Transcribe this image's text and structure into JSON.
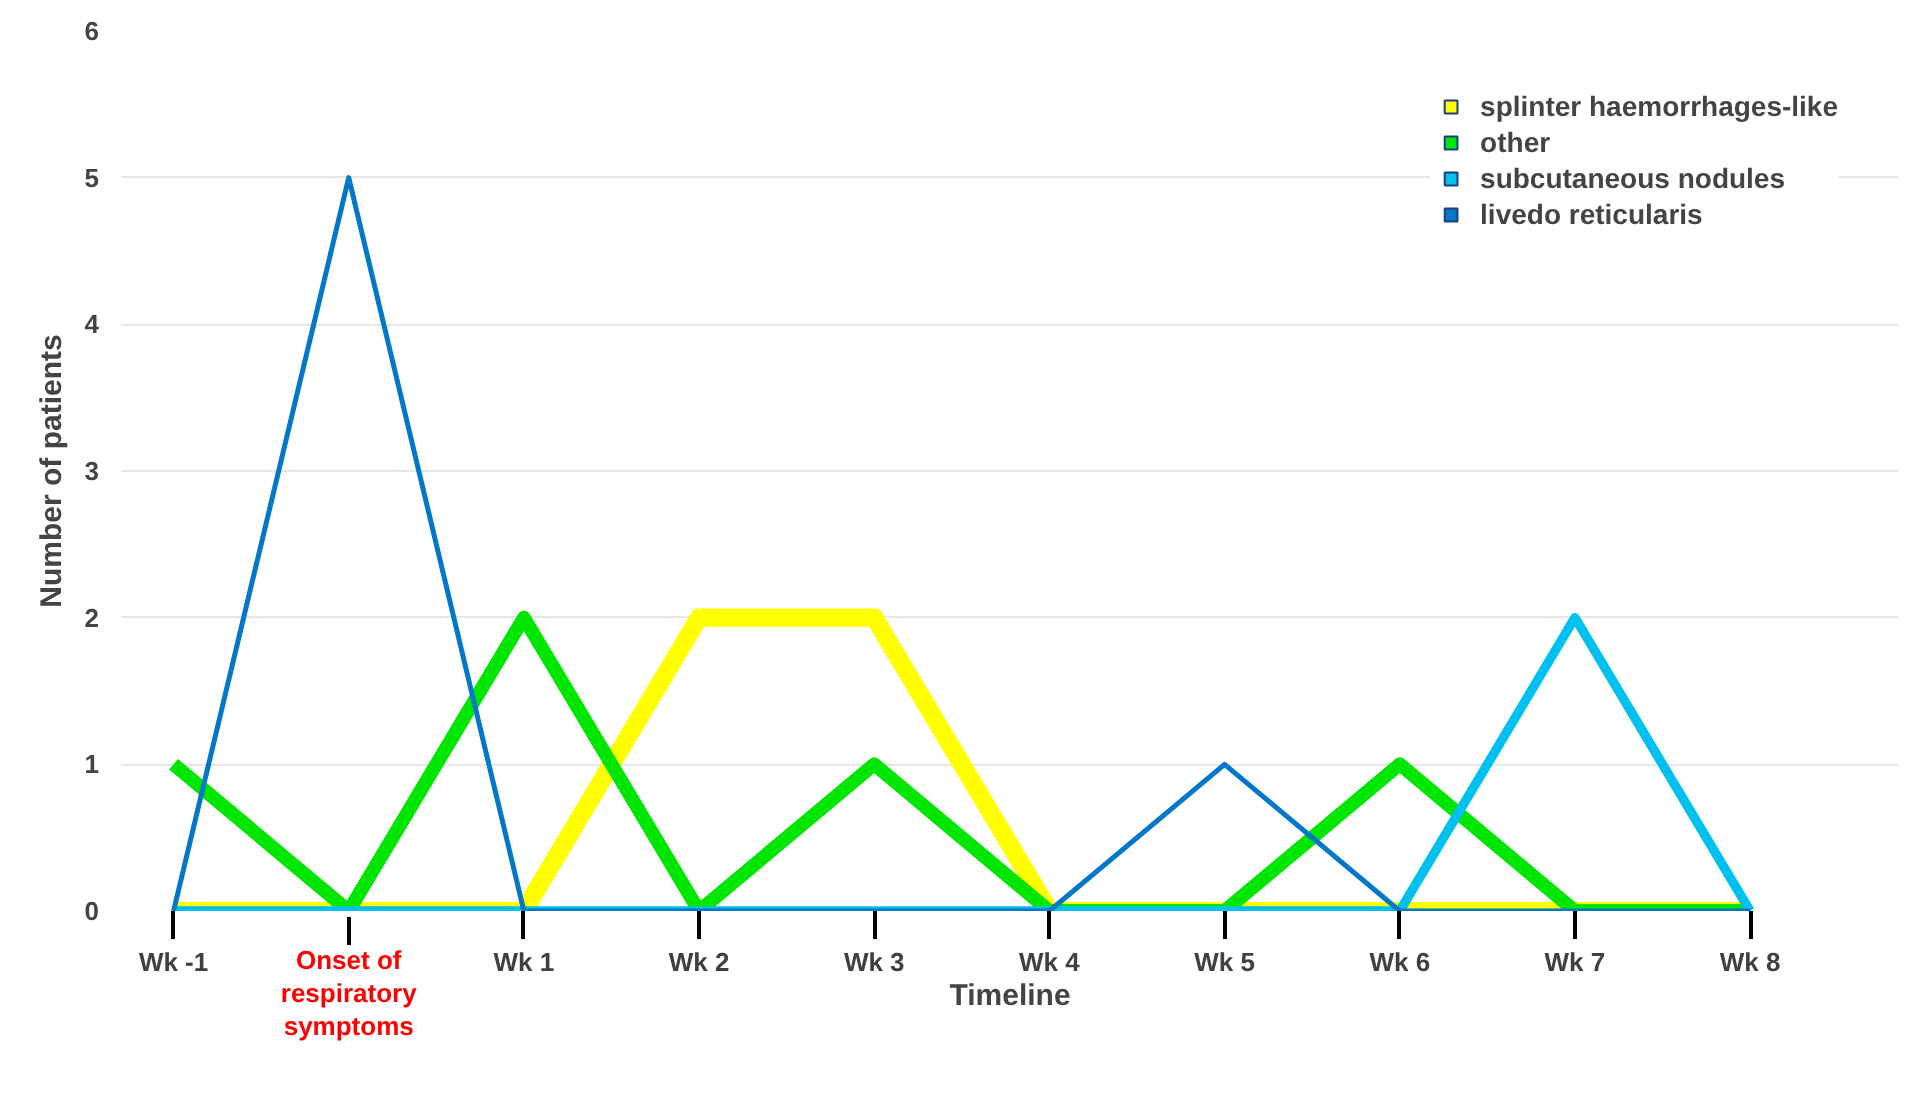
{
  "chart_data": {
    "type": "line",
    "xlabel": "Timeline",
    "ylabel": "Number of patients",
    "categories": [
      "Wk -1",
      "Onset of respiratory symptoms",
      "Wk 1",
      "Wk 2",
      "Wk 3",
      "Wk 4",
      "Wk 5",
      "Wk 6",
      "Wk 7",
      "Wk 8"
    ],
    "series": [
      {
        "name": "splinter haemorrhages-like",
        "color": "#ffff00",
        "values": [
          0,
          0,
          0,
          2,
          2,
          0,
          0,
          0,
          0,
          0
        ]
      },
      {
        "name": "other",
        "color": "#00e600",
        "values": [
          1,
          0,
          2,
          0,
          1,
          0,
          0,
          1,
          0,
          0
        ]
      },
      {
        "name": "subcutaneous nodules",
        "color": "#00c0f0",
        "values": [
          0,
          0,
          0,
          0,
          0,
          0,
          0,
          0,
          2,
          0
        ]
      },
      {
        "name": "livedo reticularis",
        "color": "#0077c8",
        "values": [
          0,
          5,
          0,
          0,
          0,
          0,
          1,
          0,
          0,
          0
        ]
      }
    ],
    "ylim": [
      0,
      6
    ],
    "yticks": [
      0,
      1,
      2,
      3,
      4,
      5,
      6
    ],
    "grid": "y",
    "legend": "top right",
    "marker": "none",
    "line_style": "solid"
  }
}
